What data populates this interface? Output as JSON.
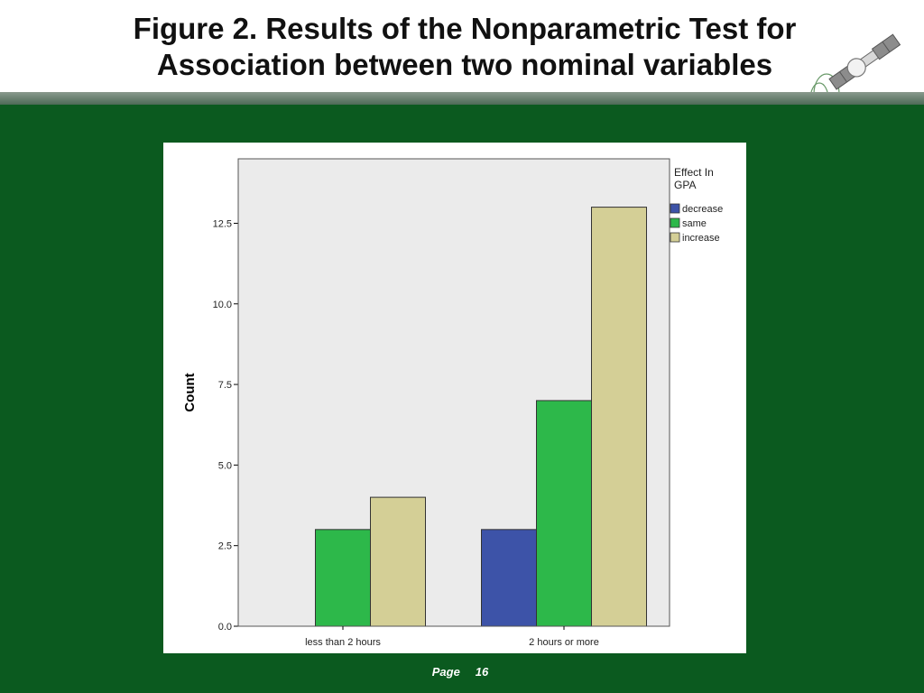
{
  "slide": {
    "title_line1": "Figure 2. Results of the Nonparametric Test for",
    "title_line2": "Association between two nominal variables",
    "page_label": "Page  16"
  },
  "colors": {
    "background": "#0b5a1f",
    "decrease": "#3d53a8",
    "same": "#2db84a",
    "increase": "#d4cf96",
    "plot_bg": "#ebebeb"
  },
  "chart_data": {
    "type": "bar",
    "title": "",
    "xlabel": "",
    "ylabel": "Count",
    "categories": [
      "less than 2 hours",
      "2 hours or more"
    ],
    "series": [
      {
        "name": "decrease",
        "values": [
          0,
          3
        ]
      },
      {
        "name": "same",
        "values": [
          3,
          7
        ]
      },
      {
        "name": "increase",
        "values": [
          4,
          13
        ]
      }
    ],
    "ylim": [
      0,
      14.5
    ],
    "yticks": [
      "0.0",
      "2.5",
      "5.0",
      "7.5",
      "10.0",
      "12.5"
    ],
    "legend_title": "Effect In GPA",
    "legend_title_line1": "Effect In",
    "legend_title_line2": "GPA",
    "legend_placement": "right-top",
    "grid": false
  }
}
